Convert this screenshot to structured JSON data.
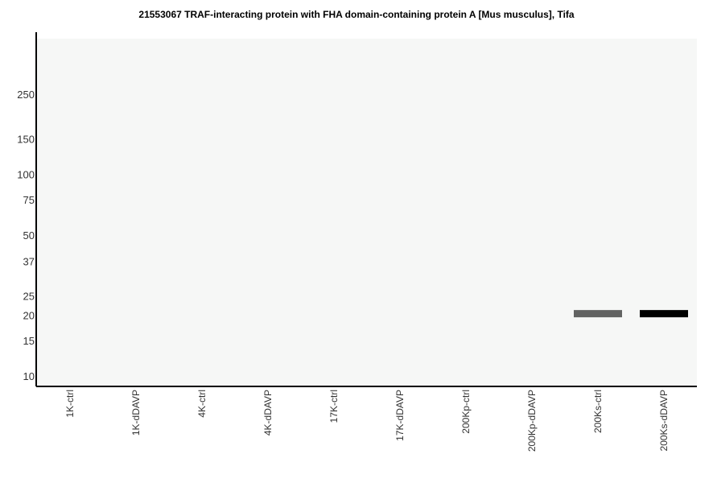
{
  "chart_data": {
    "type": "bar",
    "title": "21553067 TRAF-interacting protein with FHA domain-containing protein A [Mus musculus], Tifa",
    "y_axis": {
      "scale": "log",
      "ticks": [
        250,
        150,
        100,
        75,
        50,
        37,
        25,
        20,
        15,
        10
      ]
    },
    "categories": [
      "1K-ctrl",
      "1K-dDAVP",
      "4K-ctrl",
      "4K-dDAVP",
      "17K-ctrl",
      "17K-dDAVP",
      "200Kp-ctrl",
      "200Kp-dDAVP",
      "200Ks-ctrl",
      "200Ks-dDAVP"
    ],
    "bands": [
      {
        "lane": "200Ks-ctrl",
        "mw": 20,
        "intensity": 0.6
      },
      {
        "lane": "200Ks-dDAVP",
        "mw": 20,
        "intensity": 1.0
      }
    ],
    "grid": false
  },
  "colors": {
    "plot_background": "#f6f7f6",
    "axis": "#000000",
    "band": "#000000"
  }
}
